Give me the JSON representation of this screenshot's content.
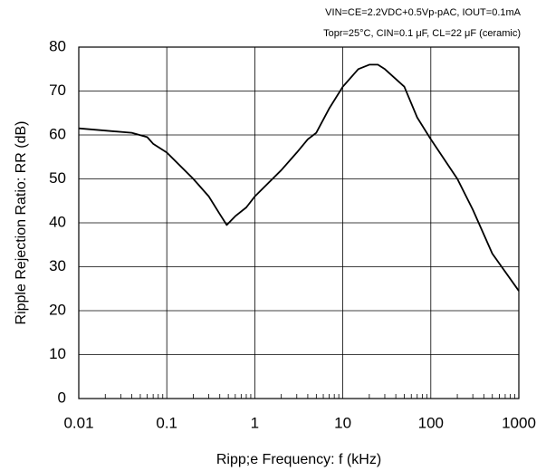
{
  "chart_data": {
    "type": "line",
    "annotations": [
      "VIN=CE=2.2VDC+0.5Vp-pAC, IOUT=0.1mA",
      "Topr=25°C, CIN=0.1 μF, CL=22 μF (ceramic)"
    ],
    "x_label": "Ripp;e Frequency: f (kHz)",
    "y_label": "Ripple Rejection Ratio: RR (dB)",
    "x_scale": "log",
    "xlim": [
      0.01,
      1000
    ],
    "xticks": [
      0.01,
      0.1,
      1,
      10,
      100,
      1000
    ],
    "ylim": [
      0,
      80
    ],
    "yticks": [
      0,
      10,
      20,
      30,
      40,
      50,
      60,
      70,
      80
    ],
    "grid": true,
    "series": [
      {
        "color": "#000000",
        "x": [
          0.01,
          0.02,
          0.04,
          0.06,
          0.07,
          0.1,
          0.2,
          0.3,
          0.4,
          0.48,
          0.6,
          0.8,
          1,
          2,
          3,
          4,
          5,
          7,
          10,
          15,
          20,
          25,
          30,
          50,
          70,
          100,
          200,
          300,
          500,
          1000
        ],
        "values": [
          61.5,
          61,
          60.5,
          59.5,
          58,
          56,
          50,
          46,
          42,
          39.5,
          41.5,
          43.5,
          46,
          52,
          56,
          59,
          60.5,
          66,
          71,
          75,
          76,
          76,
          75,
          71,
          64,
          59,
          50,
          43,
          33,
          24.5
        ]
      }
    ]
  }
}
